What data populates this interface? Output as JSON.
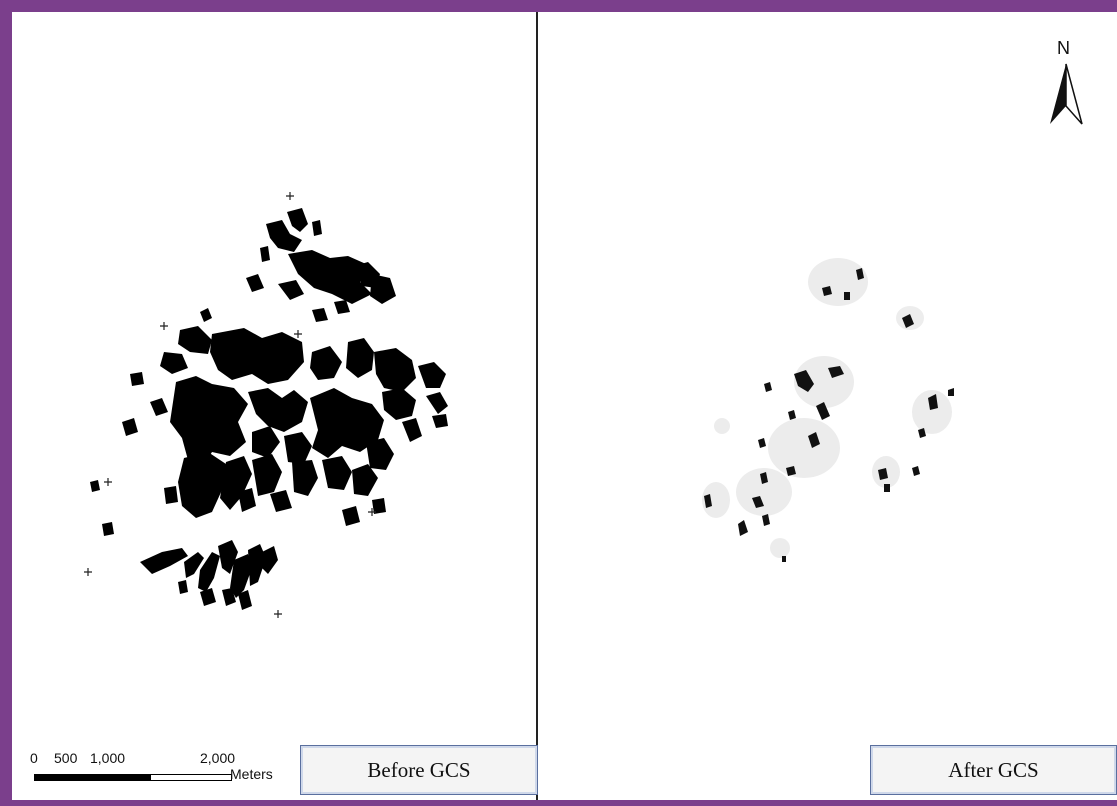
{
  "panels": {
    "before": {
      "label": "Before GCS"
    },
    "after": {
      "label": "After GCS"
    }
  },
  "scale_bar": {
    "ticks": [
      "0",
      "500",
      "1,000",
      "2,000"
    ],
    "units": "Meters"
  },
  "north_arrow": {
    "letter": "N"
  },
  "colors": {
    "frame": "#7b3f8c",
    "features": "#000000",
    "label_border": "#5a6f9e"
  }
}
